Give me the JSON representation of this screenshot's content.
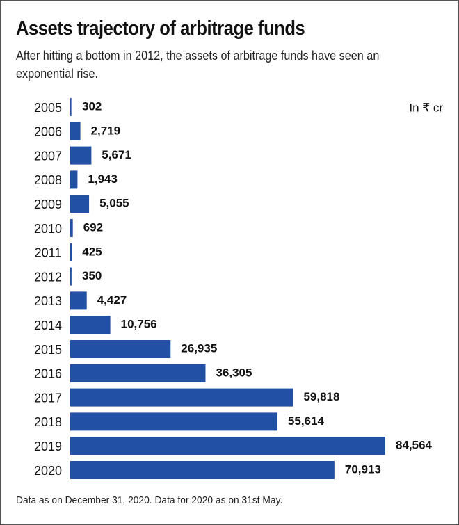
{
  "chart_data": {
    "type": "bar",
    "orientation": "horizontal",
    "title": "Assets trajectory of arbitrage funds",
    "subtitle": "After hitting a bottom in 2012, the assets of arbitrage funds have seen an exponential rise.",
    "unit_label": "In ₹ cr",
    "categories": [
      "2005",
      "2006",
      "2007",
      "2008",
      "2009",
      "2010",
      "2011",
      "2012",
      "2013",
      "2014",
      "2015",
      "2016",
      "2017",
      "2018",
      "2019",
      "2020"
    ],
    "values": [
      302,
      2719,
      5671,
      1943,
      5055,
      692,
      425,
      350,
      4427,
      10756,
      26935,
      36305,
      59818,
      55614,
      84564,
      70913
    ],
    "value_labels": [
      "302",
      "2,719",
      "5,671",
      "1,943",
      "5,055",
      "692",
      "425",
      "350",
      "4,427",
      "10,756",
      "26,935",
      "36,305",
      "59,818",
      "55,614",
      "84,564",
      "70,913"
    ],
    "color": "#2150a5",
    "footnote": "Data as on December 31, 2020. Data for 2020 as on 31st May."
  }
}
